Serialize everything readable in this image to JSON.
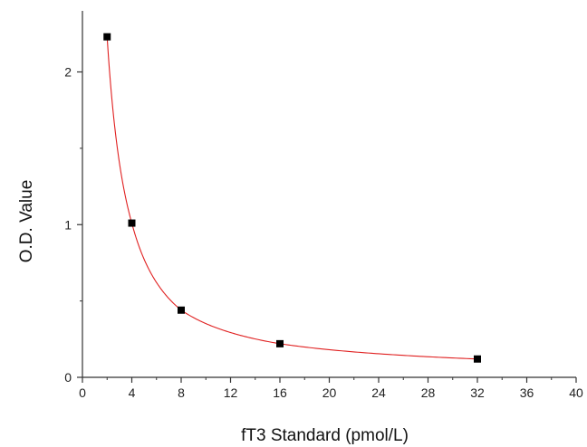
{
  "chart_data": {
    "type": "scatter",
    "title": "",
    "xlabel": "fT3 Standard (pmol/L)",
    "ylabel": "O.D. Value",
    "xlim": [
      0,
      40
    ],
    "ylim": [
      0,
      2.4
    ],
    "xticks": [
      0,
      4,
      8,
      12,
      16,
      20,
      24,
      28,
      32,
      36,
      40
    ],
    "yticks": [
      0,
      1,
      2
    ],
    "grid": false,
    "legend": "none",
    "points": [
      {
        "x": 2,
        "y": 2.23
      },
      {
        "x": 4,
        "y": 1.01
      },
      {
        "x": 8,
        "y": 0.44
      },
      {
        "x": 16,
        "y": 0.22
      },
      {
        "x": 32,
        "y": 0.12
      }
    ],
    "fit_curve": {
      "type": "smooth curve through points",
      "color": "#e02020"
    },
    "colors": {
      "marker": "#000000",
      "curve": "#e02020",
      "axis": "#333333"
    }
  }
}
